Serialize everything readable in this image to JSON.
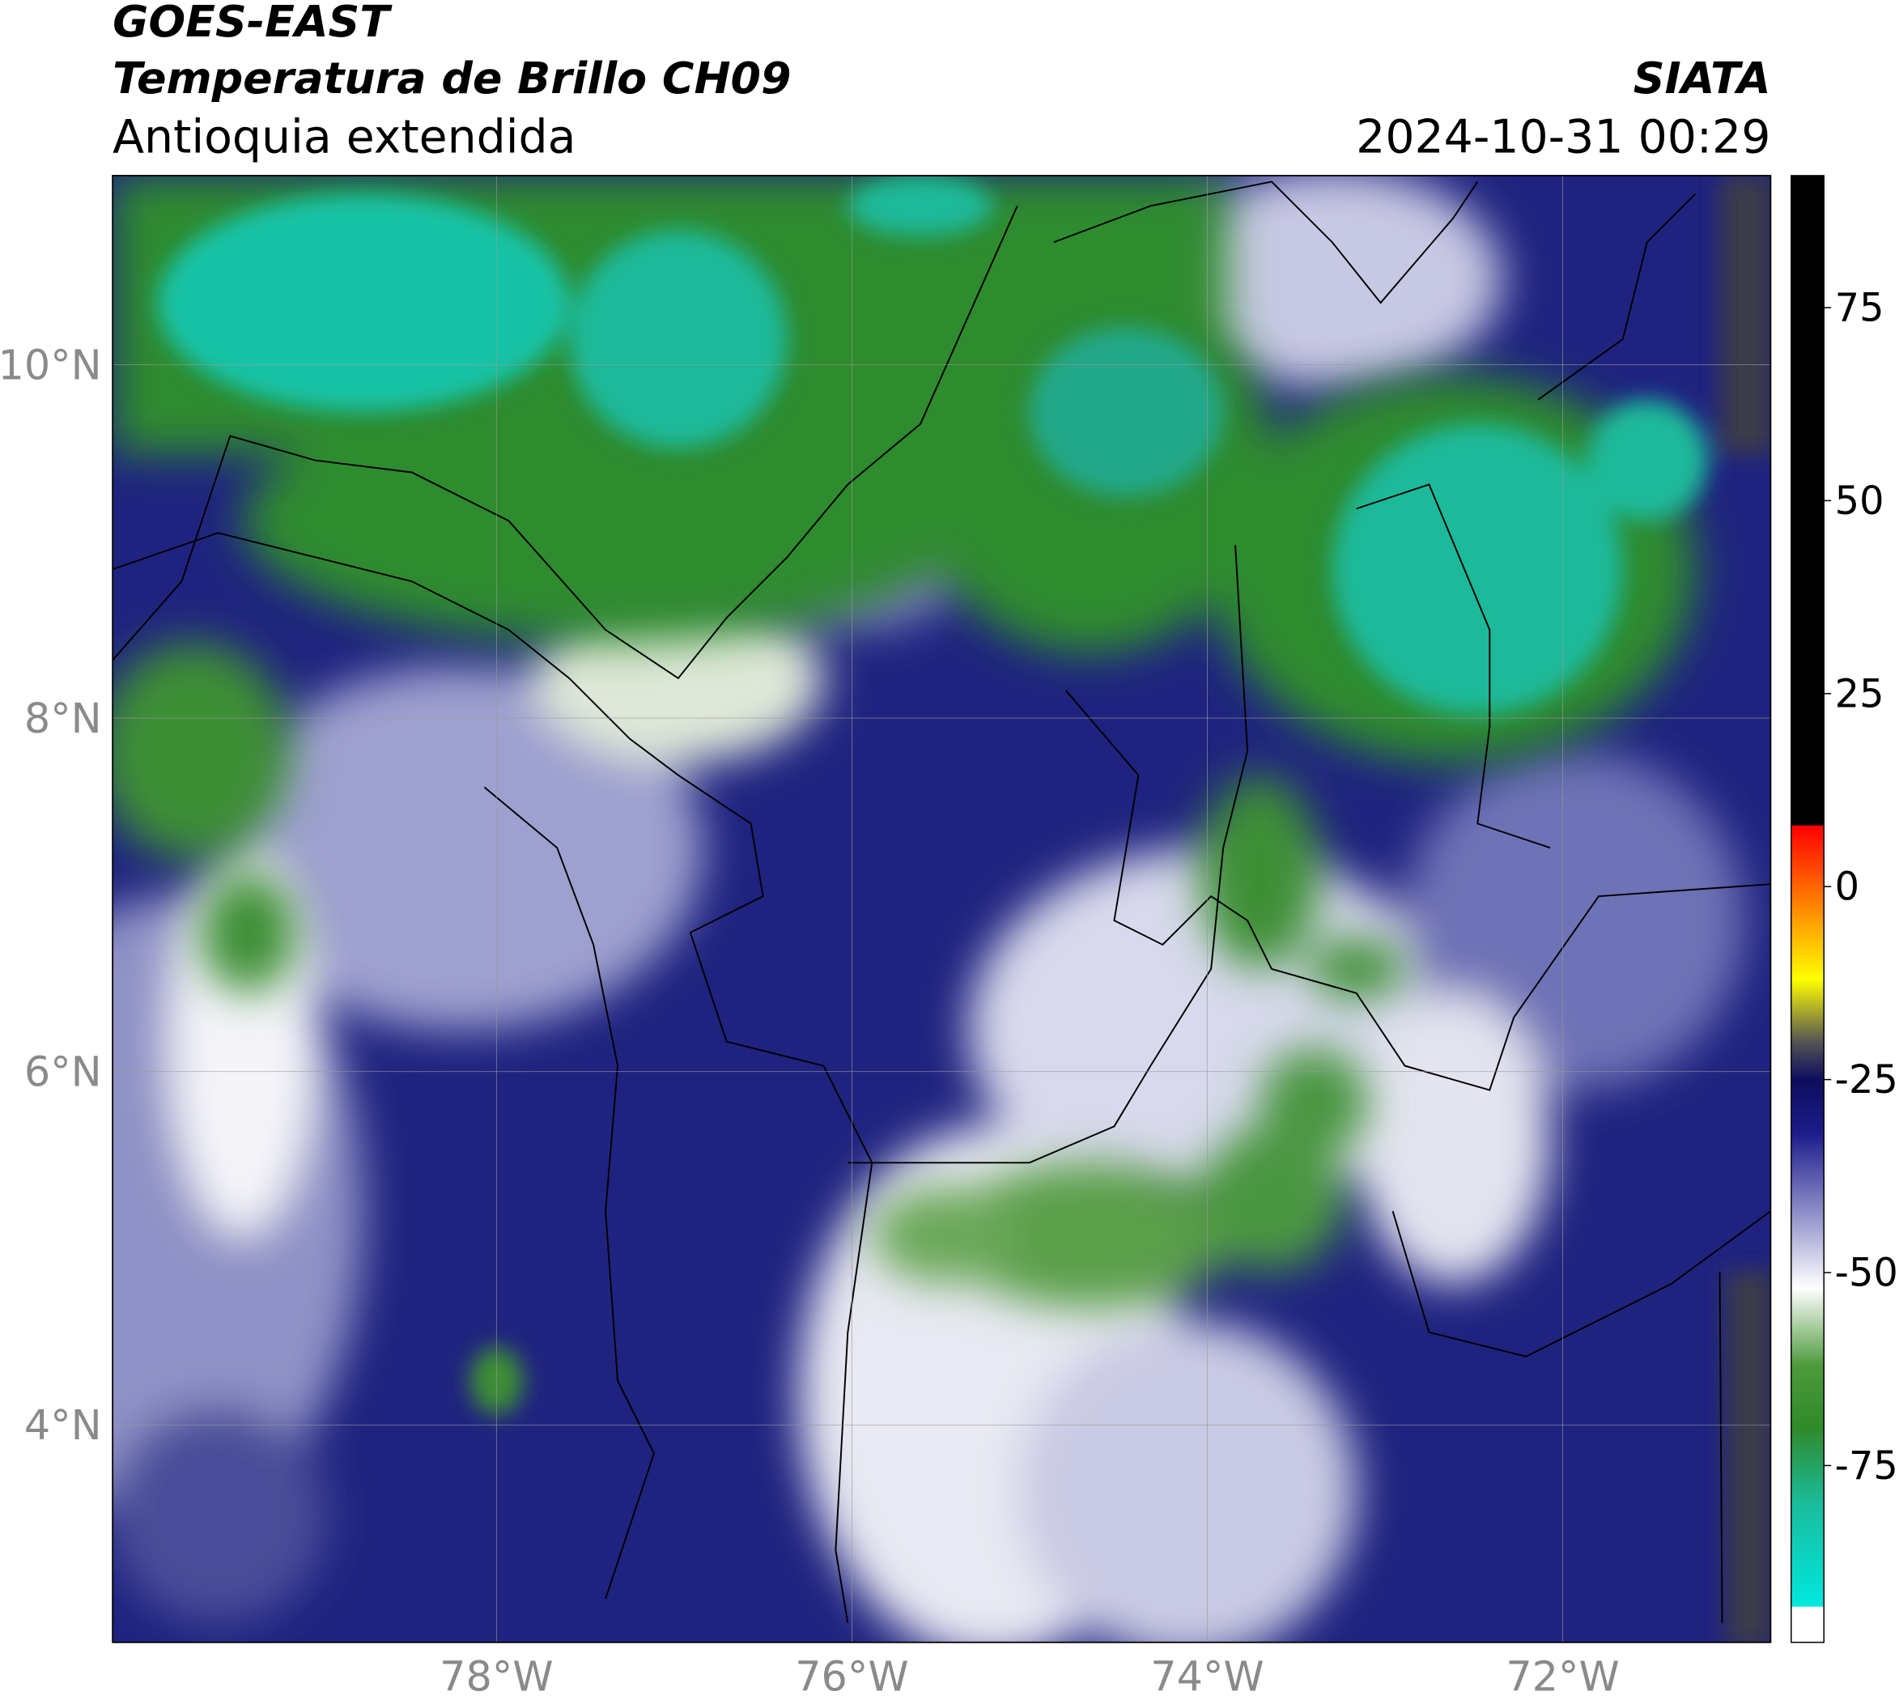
{
  "header": {
    "title_line1": "GOES-EAST",
    "title_line2": "Temperatura de Brillo CH09",
    "subtitle": "Antioquia extendida",
    "agency": "SIATA",
    "timestamp": "2024-10-31 00:29"
  },
  "chart_data": {
    "type": "map",
    "xlim": [
      -80.16,
      -70.83
    ],
    "ylim": [
      2.77,
      11.07
    ],
    "xticks": [
      {
        "value": -78,
        "label": "78°W"
      },
      {
        "value": -76,
        "label": "76°W"
      },
      {
        "value": -74,
        "label": "74°W"
      },
      {
        "value": -72,
        "label": "72°W"
      }
    ],
    "yticks": [
      {
        "value": 4,
        "label": "4°N"
      },
      {
        "value": 6,
        "label": "6°N"
      },
      {
        "value": 8,
        "label": "8°N"
      },
      {
        "value": 10,
        "label": "10°N"
      }
    ],
    "grid": true,
    "colorbar": {
      "lim": [
        -97.9,
        92.1
      ],
      "ticks": [
        -75,
        -50,
        -25,
        0,
        25,
        50,
        75
      ],
      "colors": [
        {
          "value": -97.9,
          "color": "#ffffff"
        },
        {
          "value": -93.3,
          "color": "#ffffff"
        },
        {
          "value": -93.2,
          "color": "#00e8e0"
        },
        {
          "value": -80,
          "color": "#1abc9c"
        },
        {
          "value": -70,
          "color": "#2f8a2a"
        },
        {
          "value": -62,
          "color": "#4e9a3c"
        },
        {
          "value": -52,
          "color": "#ffffff"
        },
        {
          "value": -42,
          "color": "#8c8cc8"
        },
        {
          "value": -32,
          "color": "#1c1c8c"
        },
        {
          "value": -25,
          "color": "#0d0d5c"
        },
        {
          "value": -20,
          "color": "#555555"
        },
        {
          "value": -12,
          "color": "#ffff00"
        },
        {
          "value": -4,
          "color": "#ff9900"
        },
        {
          "value": 7.9,
          "color": "#ff0000"
        },
        {
          "value": 8,
          "color": "#000000"
        },
        {
          "value": 92.1,
          "color": "#000000"
        }
      ]
    }
  }
}
